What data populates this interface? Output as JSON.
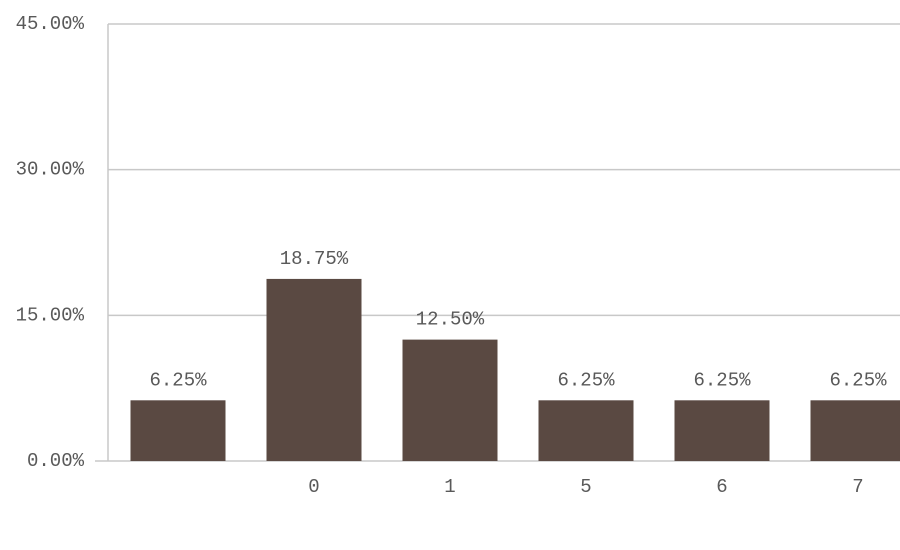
{
  "chart_data": {
    "type": "bar",
    "categories": [
      null,
      "0",
      "1",
      "5",
      "6",
      "7"
    ],
    "values": [
      6.25,
      18.75,
      12.5,
      6.25,
      6.25,
      6.25
    ],
    "value_labels": [
      "6.25%",
      "18.75%",
      "12.50%",
      "6.25%",
      "6.25%",
      "6.25%"
    ],
    "color": "#5a4942",
    "ylim": [
      0,
      45
    ],
    "yticks": [
      {
        "value": 0,
        "label": "0.00%"
      },
      {
        "value": 15,
        "label": "15.00%"
      },
      {
        "value": 30,
        "label": "30.00%"
      },
      {
        "value": 45,
        "label": "45.00%"
      }
    ],
    "grid": true
  }
}
